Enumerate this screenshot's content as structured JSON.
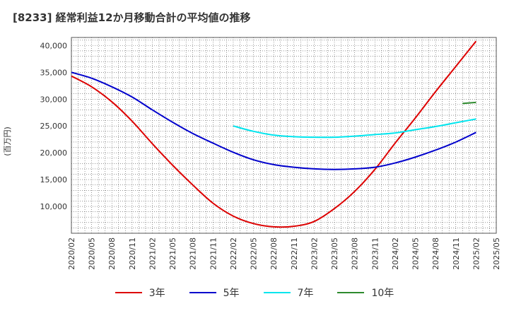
{
  "title": "[8233]  経常利益12か月移動合計の平均値の推移",
  "chart_data": {
    "type": "line",
    "ylabel": "(百万円)",
    "ylim": [
      5000,
      41500
    ],
    "yticks": [
      10000,
      15000,
      20000,
      25000,
      30000,
      35000,
      40000
    ],
    "ytick_labels": [
      "10,000",
      "15,000",
      "20,000",
      "25,000",
      "30,000",
      "35,000",
      "40,000"
    ],
    "xlim": [
      "2020-02",
      "2025-05"
    ],
    "xtick_labels": [
      "2020/02",
      "2020/05",
      "2020/08",
      "2020/11",
      "2021/02",
      "2021/05",
      "2021/08",
      "2021/11",
      "2022/02",
      "2022/05",
      "2022/08",
      "2022/11",
      "2023/02",
      "2023/05",
      "2023/08",
      "2023/11",
      "2024/02",
      "2024/05",
      "2024/08",
      "2024/11",
      "2025/02",
      "2025/05"
    ],
    "grid": true,
    "legend_position": "bottom",
    "series": [
      {
        "name": "3年",
        "color": "#dd0000",
        "x": [
          "2020-02",
          "2020-05",
          "2020-08",
          "2020-11",
          "2021-02",
          "2021-05",
          "2021-08",
          "2021-11",
          "2022-02",
          "2022-05",
          "2022-08",
          "2022-11",
          "2023-02",
          "2023-05",
          "2023-08",
          "2023-11",
          "2024-02",
          "2024-05",
          "2024-08",
          "2024-11",
          "2025-02"
        ],
        "values": [
          34300,
          32300,
          29500,
          25900,
          21700,
          17700,
          14000,
          10600,
          8200,
          6800,
          6200,
          6300,
          7200,
          9600,
          12800,
          16900,
          21800,
          26500,
          31400,
          36100,
          40800
        ]
      },
      {
        "name": "5年",
        "color": "#0000cc",
        "x": [
          "2020-02",
          "2020-05",
          "2020-08",
          "2020-11",
          "2021-02",
          "2021-05",
          "2021-08",
          "2021-11",
          "2022-02",
          "2022-05",
          "2022-08",
          "2022-11",
          "2023-02",
          "2023-05",
          "2023-08",
          "2023-11",
          "2024-02",
          "2024-05",
          "2024-08",
          "2024-11",
          "2025-02"
        ],
        "values": [
          35000,
          33900,
          32300,
          30400,
          28000,
          25700,
          23600,
          21800,
          20100,
          18700,
          17800,
          17300,
          17000,
          16900,
          17000,
          17300,
          18100,
          19200,
          20500,
          22000,
          23800
        ]
      },
      {
        "name": "7年",
        "color": "#00e5ee",
        "x": [
          "2022-02",
          "2022-05",
          "2022-08",
          "2022-11",
          "2023-02",
          "2023-05",
          "2023-08",
          "2023-11",
          "2024-02",
          "2024-05",
          "2024-08",
          "2024-11",
          "2025-02"
        ],
        "values": [
          25000,
          24000,
          23300,
          23000,
          22900,
          22900,
          23100,
          23400,
          23700,
          24300,
          24900,
          25600,
          26300
        ]
      },
      {
        "name": "10年",
        "color": "#2e8b2e",
        "x": [
          "2024-12",
          "2025-02"
        ],
        "values": [
          29200,
          29400
        ]
      }
    ]
  }
}
